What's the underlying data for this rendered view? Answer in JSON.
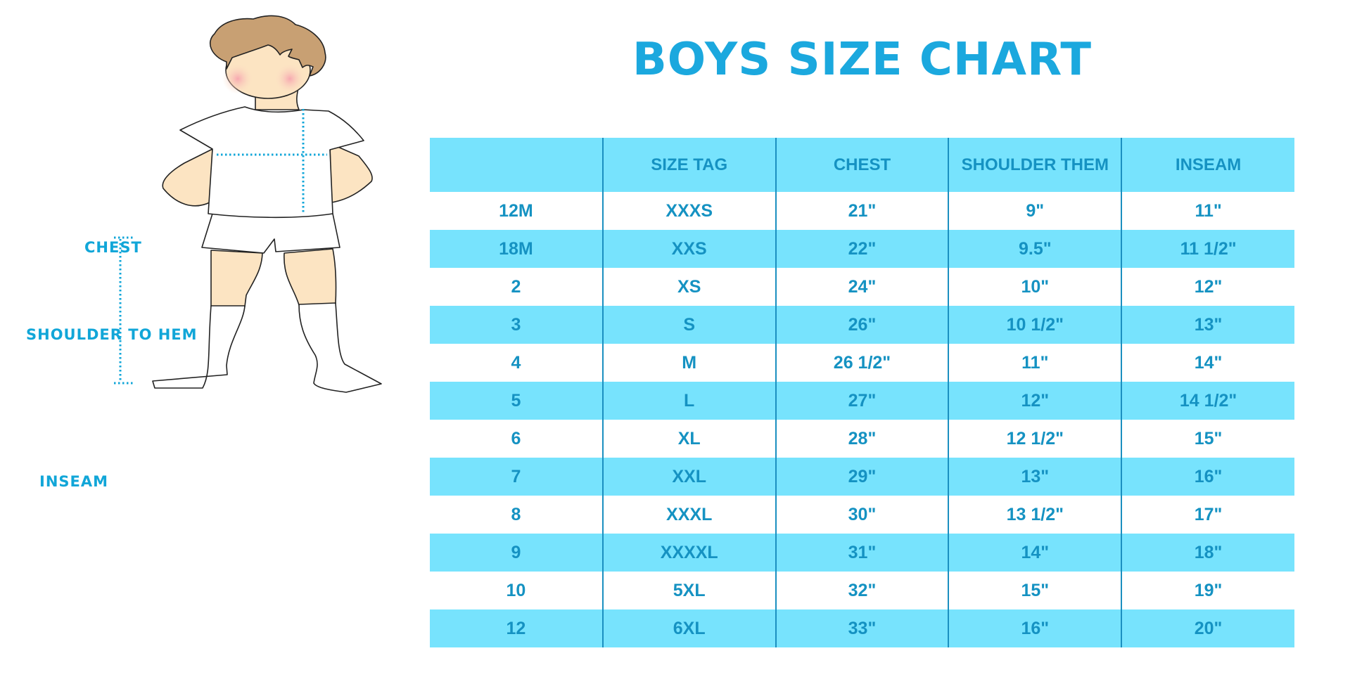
{
  "title": "BOYS SIZE CHART",
  "figure_labels": {
    "chest": "CHEST",
    "shoulder_to_hem": "SHOULDER TO HEM",
    "inseam": "INSEAM"
  },
  "colors": {
    "accent": "#1ba8de",
    "row_fill": "#77e3fd",
    "table_text": "#1592c2"
  },
  "table": {
    "headers": [
      "",
      "SIZE TAG",
      "CHEST",
      "SHOULDER THEM",
      "INSEAM"
    ],
    "rows": [
      [
        "12M",
        "XXXS",
        "21\"",
        "9\"",
        "11\""
      ],
      [
        "18M",
        "XXS",
        "22\"",
        "9.5\"",
        "11 1/2\""
      ],
      [
        "2",
        "XS",
        "24\"",
        "10\"",
        "12\""
      ],
      [
        "3",
        "S",
        "26\"",
        "10 1/2\"",
        "13\""
      ],
      [
        "4",
        "M",
        "26 1/2\"",
        "11\"",
        "14\""
      ],
      [
        "5",
        "L",
        "27\"",
        "12\"",
        "14 1/2\""
      ],
      [
        "6",
        "XL",
        "28\"",
        "12 1/2\"",
        "15\""
      ],
      [
        "7",
        "XXL",
        "29\"",
        "13\"",
        "16\""
      ],
      [
        "8",
        "XXXL",
        "30\"",
        "13 1/2\"",
        "17\""
      ],
      [
        "9",
        "XXXXL",
        "31\"",
        "14\"",
        "18\""
      ],
      [
        "10",
        "5XL",
        "32\"",
        "15\"",
        "19\""
      ],
      [
        "12",
        "6XL",
        "33\"",
        "16\"",
        "20\""
      ]
    ]
  }
}
